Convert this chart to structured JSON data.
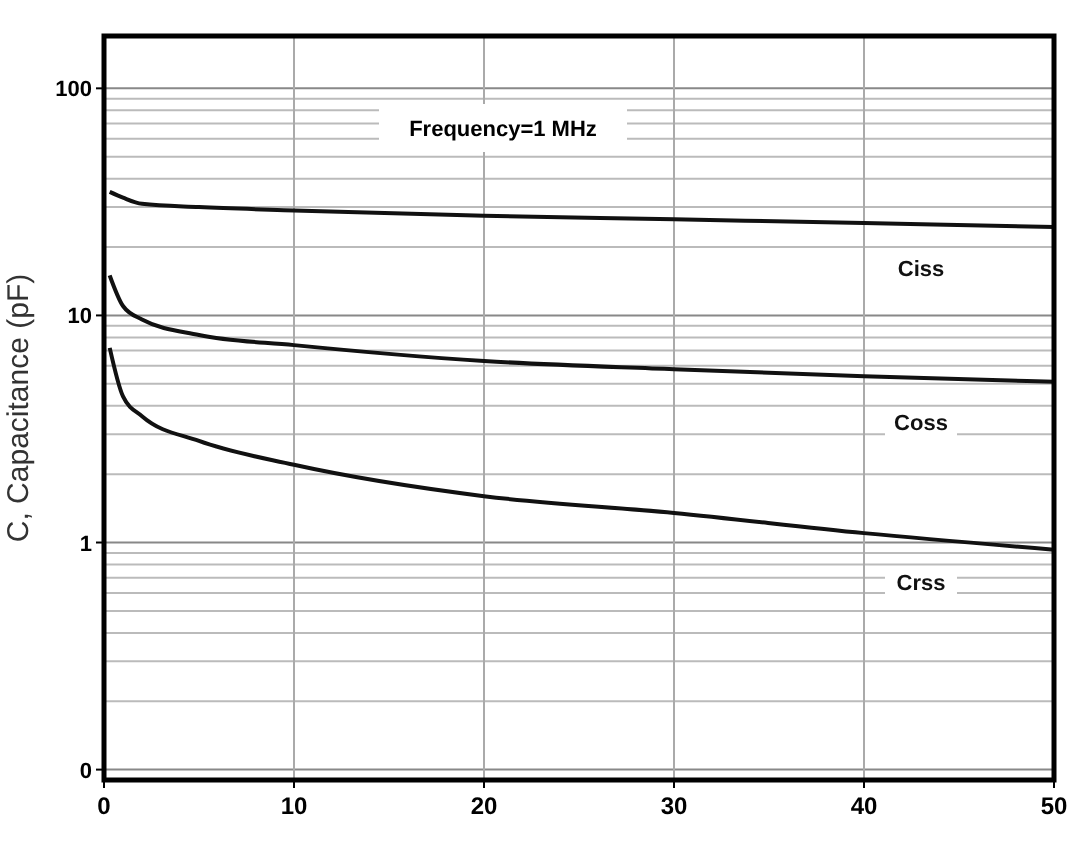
{
  "chart_data": {
    "type": "line",
    "ylabel": "C, Capacitance (pF)",
    "annotations": [
      "Frequency=1 MHz"
    ],
    "x": [
      0.3,
      1,
      2,
      5,
      10,
      20,
      30,
      40,
      50
    ],
    "xlim": [
      0,
      50
    ],
    "xticks": [
      0,
      10,
      20,
      30,
      40,
      50
    ],
    "ylim": [
      0.09,
      170
    ],
    "yticks": [
      {
        "value": 0.1,
        "label": "0"
      },
      1,
      10,
      100
    ],
    "log": true,
    "grid": true,
    "marker": "none",
    "line_style": "solid",
    "series": [
      {
        "name": "Ciss",
        "color": "#111111",
        "values": [
          35,
          33,
          31,
          30,
          29,
          27.5,
          26.5,
          25.5,
          24.5
        ]
      },
      {
        "name": "Coss",
        "color": "#111111",
        "values": [
          15,
          11,
          9.6,
          8.2,
          7.4,
          6.3,
          5.8,
          5.4,
          5.1
        ]
      },
      {
        "name": "Crss",
        "color": "#111111",
        "values": [
          7.2,
          4.4,
          3.6,
          2.8,
          2.2,
          1.6,
          1.35,
          1.1,
          0.93
        ]
      }
    ]
  }
}
